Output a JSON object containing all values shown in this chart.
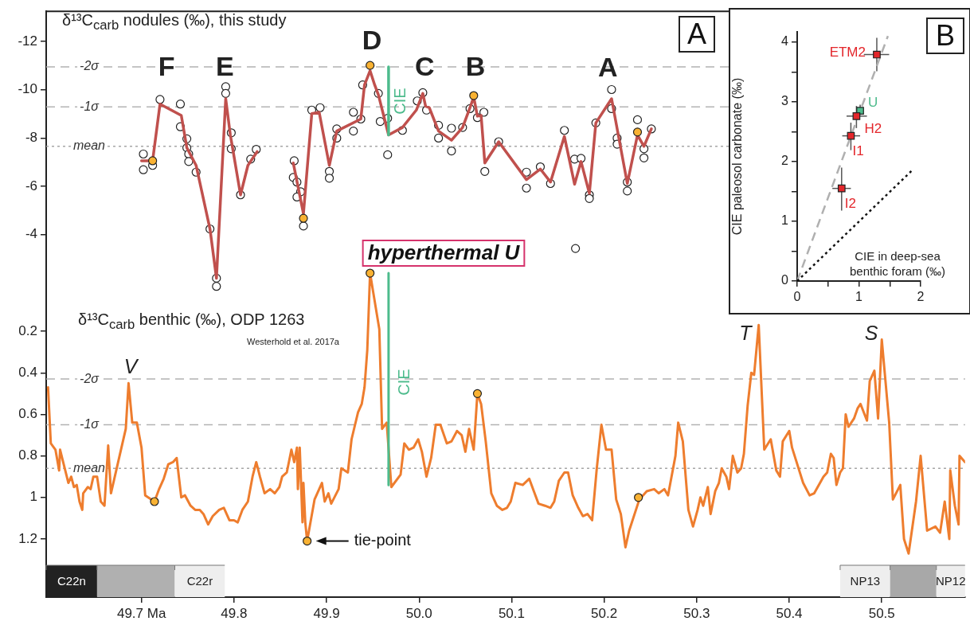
{
  "chart_data": [
    {
      "type": "line",
      "title": "δ¹³C$_{carb}$ nodules (‰), this study",
      "tick_labels": "y",
      "xlim": [
        49.597,
        50.59
      ],
      "ylim": [
        -1.0,
        -13.25
      ],
      "yticks": [
        -12,
        -10,
        -8,
        -6,
        -4
      ],
      "ref_lines": [
        {
          "axis": "y",
          "value": -10.95,
          "label": "-2σ",
          "line_style": "dashed",
          "color": "#b3b3b3"
        },
        {
          "axis": "y",
          "value": -9.29,
          "label": "-1σ",
          "line_style": "dashed",
          "color": "#b3b3b3"
        },
        {
          "axis": "y",
          "value": -7.66,
          "label": "mean",
          "line_style": "dotted",
          "color": "#a6a6a6"
        }
      ],
      "series": [
        {
          "type": "scatter",
          "color": "#ffffff",
          "marker": "circle",
          "x": [
            49.702,
            49.702,
            49.712,
            49.72,
            49.742,
            49.742,
            49.749,
            49.749,
            49.751,
            49.751,
            49.759,
            49.774,
            49.781,
            49.781,
            49.791,
            49.791,
            49.797,
            49.797,
            49.807,
            49.818,
            49.824,
            49.865,
            49.864,
            49.868,
            49.872,
            49.868,
            49.875,
            49.884,
            49.893,
            49.903,
            49.903,
            49.911,
            49.911,
            49.929,
            49.929,
            49.937,
            49.939,
            49.956,
            49.958,
            49.966,
            49.966,
            49.982,
            49.998,
            50.004,
            50.008,
            50.021,
            50.021,
            50.035,
            50.035,
            50.047,
            50.055,
            50.063,
            50.07,
            50.071,
            50.086,
            50.116,
            50.116,
            50.131,
            50.142,
            50.157,
            50.168,
            50.175,
            50.184,
            50.184,
            50.191,
            50.208,
            50.208,
            50.214,
            50.214,
            50.225,
            50.225,
            50.236,
            50.243,
            50.243,
            50.251,
            50.169
          ],
          "values": [
            -7.34,
            -6.69,
            -6.87,
            -9.6,
            -9.41,
            -8.47,
            -7.97,
            -7.6,
            -7.34,
            -7.03,
            -6.59,
            -4.24,
            -2.2,
            -1.86,
            -10.13,
            -9.85,
            -8.22,
            -7.56,
            -5.65,
            -7.13,
            -7.53,
            -7.06,
            -6.37,
            -6.18,
            -5.78,
            -5.56,
            -4.36,
            -9.16,
            -9.26,
            -6.62,
            -6.34,
            -8.38,
            -8.0,
            -9.07,
            -8.29,
            -8.79,
            -10.2,
            -9.85,
            -8.69,
            -8.82,
            -7.31,
            -8.32,
            -9.54,
            -9.88,
            -9.16,
            -8.53,
            -8.0,
            -8.41,
            -7.47,
            -8.44,
            -9.22,
            -8.85,
            -9.07,
            -6.62,
            -7.85,
            -6.59,
            -5.93,
            -6.81,
            -6.12,
            -8.32,
            -7.13,
            -7.16,
            -5.65,
            -5.5,
            -8.63,
            -10.01,
            -9.22,
            -8.0,
            -7.75,
            -6.18,
            -5.81,
            -8.76,
            -7.56,
            -7.18,
            -8.38,
            -3.43
          ]
        },
        {
          "color": "#c0504d",
          "marker": "none",
          "line_style": "solid",
          "x": [
            49.7,
            49.712,
            49.72,
            49.743,
            49.749,
            49.759,
            49.774,
            49.781,
            49.791,
            49.796,
            49.798,
            49.807,
            49.815,
            49.825,
            49.845,
            49.864,
            49.875,
            49.884,
            49.892,
            49.903,
            49.911,
            49.937,
            49.941,
            49.947,
            49.952,
            49.956,
            49.967,
            49.982,
            49.997,
            50.004,
            50.007,
            50.011,
            50.021,
            50.035,
            50.047,
            50.055,
            50.059,
            50.063,
            50.067,
            50.071,
            50.086,
            50.116,
            50.131,
            50.142,
            50.157,
            50.168,
            50.175,
            50.184,
            50.191,
            50.208,
            50.225,
            50.236,
            50.243,
            50.251
          ],
          "values": [
            -7.06,
            -7.06,
            -9.41,
            -8.94,
            -7.6,
            -6.87,
            -4.24,
            -2.2,
            -9.63,
            -8.13,
            -7.69,
            -5.65,
            -6.87,
            -7.44,
            null,
            -6.97,
            -4.87,
            -9.01,
            -9.07,
            -6.87,
            -8.29,
            -8.79,
            -10.2,
            -10.79,
            -10.2,
            -9.79,
            -8.13,
            -8.44,
            -9.16,
            -9.85,
            -9.32,
            -9.26,
            -8.29,
            -7.91,
            -8.44,
            -9.26,
            -9.7,
            -8.91,
            -8.94,
            -6.97,
            -7.85,
            -6.28,
            -6.72,
            -6.18,
            -8.07,
            -6.09,
            -7.03,
            -5.71,
            -8.63,
            -9.63,
            -6.12,
            -8.13,
            -7.66,
            -8.38
          ]
        },
        {
          "type": "scatter",
          "color": "#f9b233",
          "marker": "circle",
          "x": [
            49.712,
            49.875,
            49.947,
            50.059,
            50.236
          ],
          "values": [
            -7.06,
            -4.68,
            -11.01,
            -9.76,
            -8.25
          ]
        },
        {
          "color": "#4dbb8c",
          "marker": "none",
          "line_style": "solid",
          "x": [
            49.967,
            49.967
          ],
          "values": [
            -10.95,
            -8.13
          ]
        }
      ],
      "annotations": [
        {
          "text": "F",
          "x": 49.727,
          "y": -10.9
        },
        {
          "text": "E",
          "x": 49.79,
          "y": -10.9
        },
        "D",
        {
          "text": "C",
          "x": 50.006,
          "y": -10.9
        },
        {
          "text": "B",
          "x": 50.061,
          "y": -10.9
        },
        {
          "text": "A",
          "x": 50.204,
          "y": -10.85
        },
        "hyperthermal U",
        "CIE",
        "A"
      ]
    },
    {
      "type": "line",
      "title": "δ¹³C$_{carb}$ benthic (‰), ODP 1263",
      "xlim": [
        49.597,
        50.59
      ],
      "ylim": [
        1.48,
        -0.13
      ],
      "yticks": [
        0.2,
        0.4,
        0.6,
        0.8,
        1,
        1.2
      ],
      "xticks": [
        {
          "value": 49.7,
          "label": "49.7 Ma"
        },
        49.8,
        49.9,
        {
          "value": 50.0,
          "label": "50.0"
        },
        50.1,
        50.2,
        50.3,
        50.4,
        50.5
      ],
      "ref_lines": [
        {
          "axis": "y",
          "value": 0.43,
          "label": "-2σ",
          "line_style": "dashed",
          "color": "#b3b3b3"
        },
        {
          "axis": "y",
          "value": 0.65,
          "label": "-1σ",
          "line_style": "dashed",
          "color": "#b3b3b3"
        },
        {
          "axis": "y",
          "value": 0.86,
          "label": "mean",
          "line_style": "dotted",
          "color": "#a6a6a6"
        }
      ],
      "bands": [
        {
          "axis": "x",
          "from": 49.597,
          "to": 49.652,
          "label": "C22n",
          "color": "#222222"
        },
        {
          "axis": "x",
          "from": 49.652,
          "to": 49.736,
          "color": "#b0b0b0"
        },
        {
          "axis": "x",
          "from": 49.736,
          "to": 49.79,
          "label": "C22r",
          "color": "#eeeeee"
        },
        {
          "axis": "x",
          "from": 50.455,
          "to": 50.509,
          "label": "NP13",
          "color": "#eeeeee"
        },
        {
          "axis": "x",
          "from": 50.509,
          "to": 50.559,
          "color": "#a8a8a8"
        },
        {
          "axis": "x",
          "from": 50.559,
          "to": 50.59,
          "label": "NP12",
          "color": "#eeeeee"
        }
      ],
      "series": [
        {
          "color": "#ee7d2e",
          "marker": "none",
          "line_style": "solid",
          "x": [
            49.599,
            49.602,
            49.607,
            49.611,
            49.612,
            49.621,
            49.624,
            49.627,
            49.63,
            49.633,
            49.636,
            49.637,
            49.642,
            49.645,
            49.648,
            49.652,
            49.656,
            49.66,
            49.664,
            49.667,
            49.683,
            49.686,
            49.69,
            49.695,
            49.7,
            49.704,
            49.714,
            49.719,
            49.724,
            49.729,
            49.734,
            49.738,
            49.743,
            49.747,
            49.753,
            49.758,
            49.763,
            49.767,
            49.772,
            49.777,
            49.784,
            49.789,
            49.795,
            49.8,
            49.804,
            49.809,
            49.815,
            49.82,
            49.824,
            49.828,
            49.833,
            49.839,
            49.844,
            49.849,
            49.852,
            49.857,
            49.862,
            49.865,
            49.868,
            49.869,
            49.871,
            49.874,
            49.875,
            49.877,
            49.879,
            49.887,
            49.895,
            49.898,
            49.902,
            49.905,
            49.913,
            49.916,
            49.923,
            49.927,
            49.934,
            49.938,
            49.941,
            49.944,
            49.947,
            49.957,
            49.96,
            49.965,
            49.97,
            49.98,
            49.984,
            49.989,
            49.994,
            49.999,
            50.003,
            50.008,
            50.013,
            50.018,
            50.023,
            50.03,
            50.035,
            50.041,
            50.046,
            50.05,
            50.054,
            50.059,
            50.063,
            50.067,
            50.072,
            50.078,
            50.084,
            50.09,
            50.095,
            50.099,
            50.104,
            50.112,
            50.119,
            50.124,
            50.129,
            50.136,
            50.142,
            50.146,
            50.151,
            50.157,
            50.161,
            50.166,
            50.172,
            50.177,
            50.182,
            50.187,
            50.192,
            50.197,
            50.202,
            50.208,
            50.213,
            50.218,
            50.223,
            50.227,
            50.238,
            50.246,
            50.254,
            50.259,
            50.265,
            50.269,
            50.277,
            50.28,
            50.285,
            50.291,
            50.296,
            50.301,
            50.304,
            50.307,
            50.312,
            50.315,
            50.32,
            50.324,
            50.327,
            50.332,
            50.335,
            50.339,
            50.344,
            50.348,
            50.351,
            50.355,
            50.359,
            50.362,
            50.367,
            50.373,
            50.38,
            50.386,
            50.39,
            50.393,
            50.4,
            50.403,
            50.415,
            50.422,
            50.427,
            50.437,
            50.441,
            50.445,
            50.448,
            50.451,
            50.455,
            50.458,
            50.461,
            50.464,
            50.47,
            50.474,
            50.477,
            50.484,
            50.487,
            50.492,
            50.496,
            50.5,
            50.508,
            50.512,
            50.52,
            50.524,
            50.529,
            50.537,
            50.542,
            50.549,
            50.558,
            50.563,
            50.568,
            50.573,
            50.574,
            50.579,
            50.583,
            50.584,
            50.59
          ],
          "values": [
            0.47,
            0.74,
            0.77,
            0.87,
            0.77,
            0.93,
            0.9,
            0.95,
            0.94,
            1.02,
            1.06,
            0.98,
            0.95,
            0.96,
            0.9,
            0.9,
            1.02,
            1.04,
            0.75,
            0.98,
            0.67,
            0.45,
            0.64,
            0.64,
            0.76,
            0.99,
            1.02,
            0.96,
            0.91,
            0.84,
            0.83,
            0.81,
            1.0,
            0.99,
            1.04,
            1.06,
            1.06,
            1.08,
            1.13,
            1.09,
            1.06,
            1.05,
            1.11,
            1.11,
            1.12,
            1.06,
            1.02,
            0.9,
            0.83,
            0.9,
            0.98,
            0.96,
            0.98,
            0.95,
            0.9,
            0.88,
            0.77,
            0.83,
            0.76,
            0.96,
            0.76,
            1.12,
            0.93,
            1.12,
            1.21,
            1.01,
            0.93,
            1.02,
            0.98,
            1.03,
            0.96,
            0.86,
            0.88,
            0.72,
            0.59,
            0.55,
            0.47,
            0.29,
            -0.08,
            0.19,
            0.67,
            0.64,
            0.95,
            0.89,
            0.74,
            0.77,
            0.76,
            0.72,
            0.78,
            0.9,
            0.81,
            0.65,
            0.65,
            0.74,
            0.73,
            0.68,
            0.7,
            0.78,
            0.67,
            0.77,
            0.5,
            0.55,
            0.73,
            0.98,
            1.04,
            1.06,
            1.05,
            1.02,
            0.93,
            0.94,
            0.91,
            0.97,
            1.03,
            1.04,
            1.05,
            1.02,
            0.92,
            0.88,
            0.88,
            0.99,
            1.05,
            1.09,
            1.08,
            1.11,
            0.86,
            0.65,
            0.77,
            0.77,
            1.01,
            1.08,
            1.24,
            1.16,
            1.01,
            0.97,
            0.96,
            0.98,
            0.96,
            0.99,
            0.8,
            0.64,
            0.73,
            1.06,
            1.14,
            1.06,
            1.0,
            1.04,
            0.95,
            1.08,
            0.97,
            0.93,
            0.86,
            0.9,
            0.96,
            0.8,
            0.88,
            0.86,
            0.79,
            0.56,
            0.4,
            0.41,
            0.17,
            0.77,
            0.72,
            0.87,
            0.9,
            0.73,
            0.68,
            0.76,
            0.93,
            0.99,
            0.98,
            0.9,
            0.88,
            0.79,
            0.81,
            0.94,
            0.88,
            0.86,
            0.6,
            0.66,
            0.62,
            0.57,
            0.55,
            0.63,
            0.44,
            0.39,
            0.62,
            0.24,
            0.64,
            1.01,
            0.94,
            1.2,
            1.27,
            1.02,
            0.8,
            1.16,
            1.14,
            1.17,
            1.02,
            1.2,
            0.87,
            1.04,
            1.13,
            0.8,
            0.83
          ]
        },
        {
          "type": "scatter",
          "color": "#f9b233",
          "marker": "circle",
          "x": [
            49.714,
            49.879,
            49.947,
            50.063,
            50.237
          ],
          "values": [
            1.02,
            1.21,
            -0.08,
            0.5,
            1.0
          ]
        },
        {
          "color": "#4dbb8c",
          "marker": "none",
          "line_style": "solid",
          "x": [
            49.967,
            49.967
          ],
          "values": [
            -0.08,
            0.94
          ]
        }
      ],
      "annotations": [
        "V",
        "T",
        "S",
        "CIE",
        {
          "text": "tie-point",
          "x": 49.879,
          "y": 1.21
        },
        "Westerhold et al. 2017a"
      ]
    },
    {
      "type": "scatter",
      "xlabel": "CIE in deep-sea benthic foram (‰)",
      "ylabel": "CIE paleosol carbonate (‰)",
      "xlim": [
        0,
        2
      ],
      "ylim": [
        0,
        4.17
      ],
      "xticks": [
        0,
        {
          "value": 0.5,
          "label": null
        },
        1,
        {
          "value": 1.5,
          "label": null
        },
        2
      ],
      "yticks": [
        0,
        {
          "value": 0.5,
          "label": null
        },
        1,
        {
          "value": 1.5,
          "label": null
        },
        2,
        {
          "value": 2.5,
          "label": null
        },
        3,
        {
          "value": 3.5,
          "label": null
        },
        4
      ],
      "series": [
        {
          "type": "line",
          "color": "#b0b0b0",
          "marker": "none",
          "line_style": "dashed",
          "x": [
            0,
            1.47
          ],
          "values": [
            0,
            4.1
          ]
        },
        {
          "type": "line",
          "color": "#111111",
          "marker": "none",
          "line_style": "dotted",
          "x": [
            0,
            1.85
          ],
          "values": [
            0,
            1.84
          ]
        },
        {
          "name": "ETM2",
          "color": "#e3262b",
          "marker": "square",
          "x": [
            1.29
          ],
          "values": [
            3.79
          ],
          "errors": [
            [
              3.51,
              4.07
            ]
          ],
          "xerrors": [
            [
              1.08,
              1.49
            ]
          ]
        },
        {
          "name": "U",
          "color": "#4dbb8c",
          "marker": "square",
          "x": [
            1.02
          ],
          "values": [
            2.85
          ],
          "errors": [
            [
              2.78,
              2.95
            ]
          ]
        },
        {
          "name": "H2",
          "color": "#e3262b",
          "marker": "square",
          "x": [
            0.96
          ],
          "values": [
            2.76
          ],
          "errors": [
            [
              2.56,
              2.93
            ]
          ],
          "xerrors": [
            [
              0.8,
              1.13
            ]
          ]
        },
        {
          "name": "I1",
          "color": "#e3262b",
          "marker": "square",
          "x": [
            0.87
          ],
          "values": [
            2.43
          ],
          "errors": [
            [
              2.19,
              2.65
            ]
          ],
          "xerrors": [
            [
              0.73,
              1.02
            ]
          ]
        },
        {
          "name": "I2",
          "color": "#e3262b",
          "marker": "square",
          "x": [
            0.72
          ],
          "values": [
            1.55
          ],
          "errors": [
            [
              1.18,
              1.9
            ]
          ],
          "xerrors": [
            [
              0.57,
              0.87
            ]
          ]
        }
      ],
      "annotations": [
        "B"
      ]
    }
  ]
}
